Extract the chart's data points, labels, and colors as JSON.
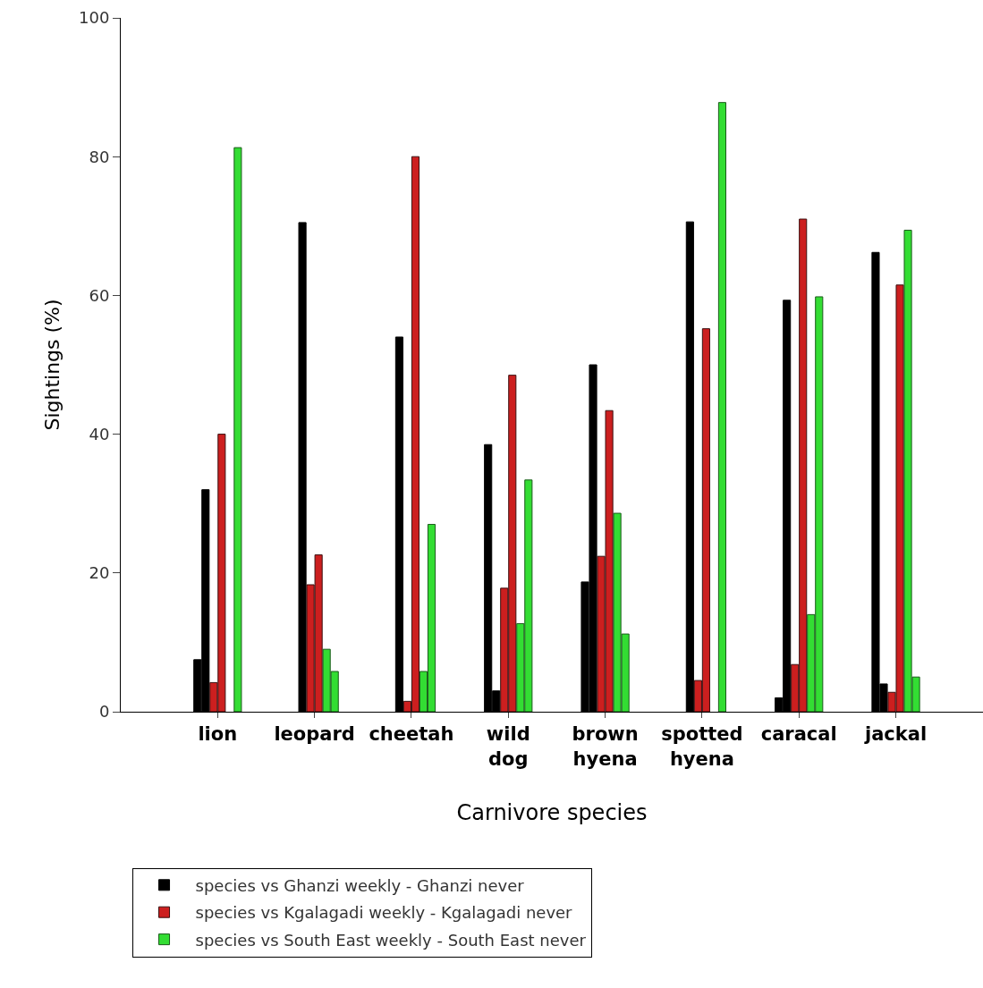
{
  "chart_data": {
    "type": "bar",
    "xlabel": "Carnivore species",
    "ylabel": "Sightings (%)",
    "categories": [
      "lion",
      "leopard",
      "cheetah",
      "wild dog",
      "brown hyena",
      "spotted hyena",
      "caracal",
      "jackal"
    ],
    "series": [
      {
        "name": "species vs Ghanzi weekly - Ghanzi never",
        "color": "#000000",
        "values": [
          7.5,
          null,
          null,
          38.5,
          18.7,
          null,
          2,
          66.2
        ]
      },
      {
        "color": "#000000",
        "values": [
          32,
          70.5,
          54,
          3,
          50,
          70.6,
          59.3,
          4
        ]
      },
      {
        "name": "species vs Kgalagadi weekly - Kgalagadi never",
        "color": "#cc1f1f",
        "values": [
          4.2,
          18.3,
          1.5,
          17.8,
          22.4,
          4.5,
          6.8,
          2.8
        ]
      },
      {
        "color": "#cc1f1f",
        "values": [
          40,
          22.6,
          80,
          48.5,
          43.4,
          55.2,
          71,
          61.5
        ]
      },
      {
        "name": "species vs South East weekly - South East never",
        "color": "#33dd33",
        "values": [
          null,
          9,
          5.8,
          12.7,
          28.6,
          null,
          14,
          69.4
        ]
      },
      {
        "color": "#33dd33",
        "values": [
          81.3,
          5.8,
          27,
          33.4,
          11.2,
          87.8,
          59.8,
          5
        ]
      }
    ],
    "ylim": [
      0,
      100
    ],
    "yticks": [
      0,
      20,
      40,
      60,
      80,
      100
    ],
    "legend": "bottom"
  }
}
